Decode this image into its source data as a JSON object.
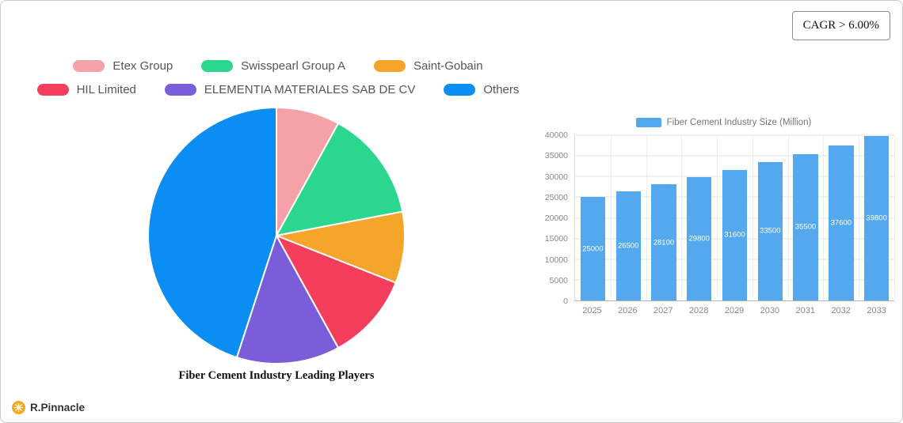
{
  "badge": {
    "cagr": "CAGR > 6.00%"
  },
  "brand": {
    "name": "R.Pinnacle",
    "icon": "pinnacle-sun-icon",
    "icon_color": "#f6a821"
  },
  "chart_data": [
    {
      "type": "pie",
      "title": "Fiber Cement Industry Leading Players",
      "labels": [
        "Etex Group",
        "Swisspearl Group A",
        "Saint-Gobain",
        "HIL Limited",
        "ELEMENTIA MATERIALES SAB DE CV",
        "Others"
      ],
      "values_percent": [
        8,
        14,
        9,
        11,
        13,
        45
      ],
      "colors": [
        "#f4a2a8",
        "#2bd78e",
        "#f5a62a",
        "#f53e5c",
        "#7a5dd8",
        "#0a8ef4"
      ],
      "legend_position": "top",
      "slice_border_color": "#ffffff"
    },
    {
      "type": "bar",
      "legend_label": "Fiber Cement Industry Size (Million)",
      "categories": [
        "2025",
        "2026",
        "2027",
        "2028",
        "2029",
        "2030",
        "2031",
        "2032",
        "2033"
      ],
      "values": [
        25000,
        26500,
        28100,
        29800,
        31600,
        33500,
        35500,
        37600,
        39800
      ],
      "bar_color": "#54a8ed",
      "ylim": [
        0,
        40000
      ],
      "ytick_step": 5000,
      "grid": true,
      "value_label_color": "#ffffff",
      "legend_position": "top"
    }
  ]
}
